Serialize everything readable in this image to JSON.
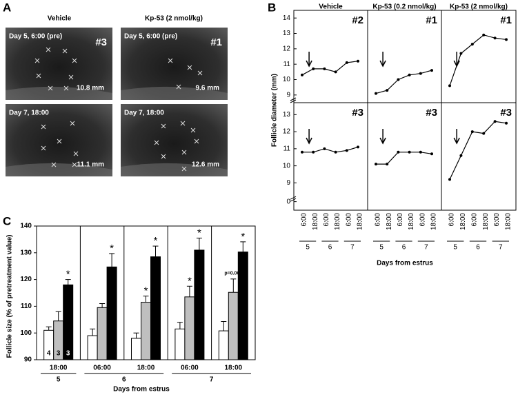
{
  "panel_labels": [
    "A",
    "B",
    "C"
  ],
  "panel_a": {
    "columns": [
      "Vehicle",
      "Kp-53 (2 nmol/kg)"
    ],
    "images": [
      {
        "caption": "Day 5, 6:00 (pre)",
        "id": "#3",
        "measure": "10.8 mm"
      },
      {
        "caption": "Day 5, 6:00 (pre)",
        "id": "#1",
        "measure": "9.6 mm"
      },
      {
        "caption": "Day 7, 18:00",
        "measure": "11.1 mm"
      },
      {
        "caption": "Day 7, 18:00",
        "measure": "12.6 mm"
      }
    ]
  },
  "chart_data": [
    {
      "type": "line",
      "columns": [
        "Vehicle",
        "Kp-53 (0.2 nmol/kg)",
        "Kp-53 (2 nmol/kg)"
      ],
      "ylabel": "Follicle diameter (mm)",
      "xlabel": "Days from estrus",
      "categories": [
        "6:00",
        "18:00",
        "6:00",
        "18:00",
        "6:00",
        "18:00"
      ],
      "days": [
        "5",
        "6",
        "7"
      ],
      "color": "#000000",
      "rows": [
        {
          "ylim": [
            8.5,
            14.5
          ],
          "yticks": [
            9,
            10,
            11,
            12,
            13,
            14
          ],
          "panels": [
            {
              "label": "#2",
              "values": [
                10.3,
                10.7,
                10.7,
                10.5,
                11.1,
                11.2
              ]
            },
            {
              "label": "#1",
              "values": [
                9.1,
                9.3,
                10.0,
                10.3,
                10.4,
                10.6
              ]
            },
            {
              "label": "#1",
              "values": [
                9.6,
                11.7,
                12.3,
                12.9,
                12.7,
                12.6
              ]
            }
          ]
        },
        {
          "ylim": [
            -0.5,
            13.7
          ],
          "y_break": [
            0.5,
            8.4
          ],
          "yticks": [
            0,
            9,
            10,
            11,
            12,
            13
          ],
          "panels": [
            {
              "label": "#3",
              "values": [
                10.8,
                10.8,
                11.0,
                10.8,
                10.9,
                11.1
              ]
            },
            {
              "label": "#3",
              "values": [
                10.1,
                10.1,
                10.8,
                10.8,
                10.8,
                10.7
              ]
            },
            {
              "label": "#3",
              "values": [
                9.2,
                10.6,
                12.0,
                11.9,
                12.6,
                12.5
              ]
            }
          ]
        }
      ]
    },
    {
      "type": "bar",
      "ylabel": "Follicle size (% of pretreatment value)",
      "xlabel": "Days from estrus",
      "categories": [
        "18:00",
        "06:00",
        "18:00",
        "06:00",
        "18:00"
      ],
      "days": [
        "5",
        "6",
        "7"
      ],
      "ylim": [
        90,
        140
      ],
      "yticks": [
        90,
        100,
        110,
        120,
        130,
        140
      ],
      "n_labels": [
        "4",
        "3",
        "3"
      ],
      "series": [
        {
          "color": "#ffffff",
          "values": [
            101,
            99,
            98,
            101.5,
            100.8
          ],
          "errors": [
            1.3,
            2.5,
            2,
            2.5,
            3.5
          ]
        },
        {
          "color": "#bfbfbf",
          "values": [
            104.5,
            109.5,
            111.5,
            113.5,
            115.2
          ],
          "errors": [
            3.5,
            1.5,
            2.3,
            4,
            5
          ],
          "marks": [
            null,
            null,
            "*",
            "*",
            "p=0.063"
          ]
        },
        {
          "color": "#000000",
          "values": [
            118,
            124.7,
            128.5,
            131,
            130.3
          ],
          "errors": [
            2,
            5,
            4,
            4.5,
            3.8
          ],
          "marks": [
            "*",
            "*",
            "*",
            "*",
            "*"
          ]
        }
      ]
    }
  ]
}
